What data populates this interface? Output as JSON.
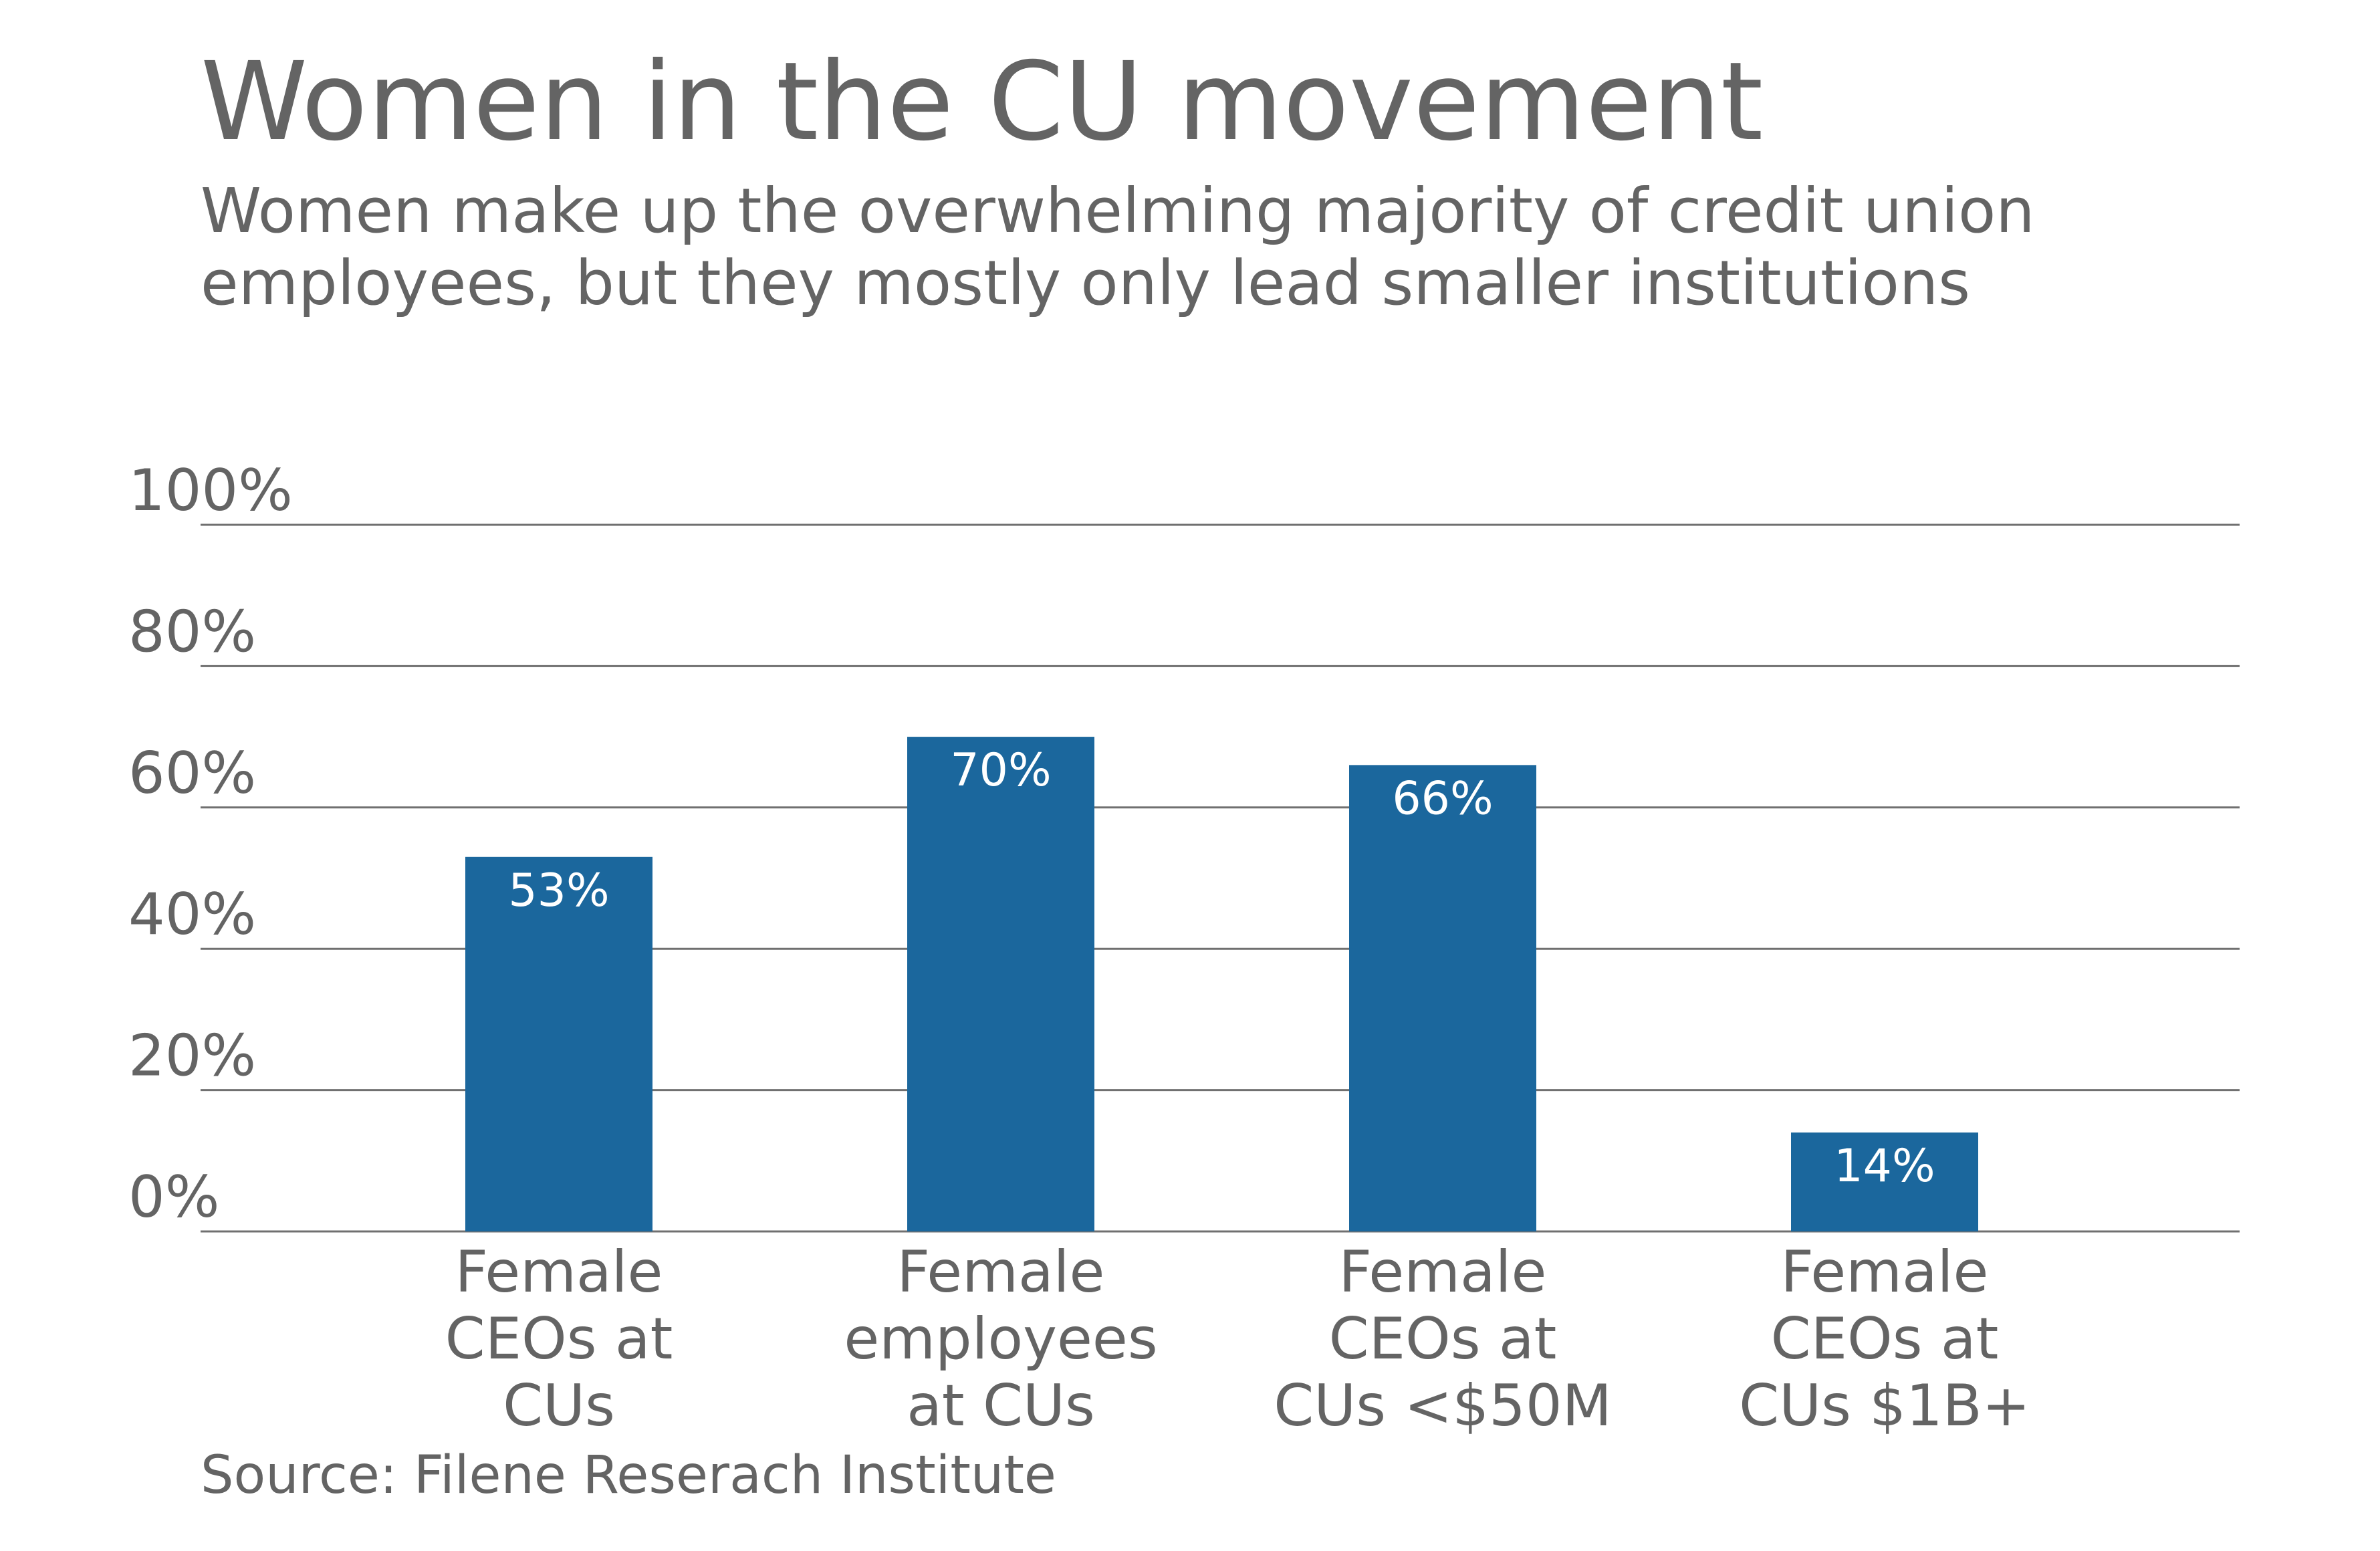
{
  "chart_data": {
    "type": "bar",
    "title": "Women in the CU movement",
    "subtitle": [
      "Women make up the overwhelming majority of credit union",
      "employees, but they mostly only lead smaller institutions"
    ],
    "categories": [
      [
        "Female",
        "CEOs at",
        "CUs"
      ],
      [
        "Female",
        "employees",
        "at CUs"
      ],
      [
        "Female",
        "CEOs at",
        "CUs <$50M"
      ],
      [
        "Female",
        "CEOs at",
        "CUs $1B+"
      ]
    ],
    "values": [
      53,
      70,
      66,
      14
    ],
    "data_labels": [
      "53%",
      "70%",
      "66%",
      "14%"
    ],
    "y_ticks": [
      0,
      20,
      40,
      60,
      80,
      100
    ],
    "y_tick_labels": [
      "0%",
      "20%",
      "40%",
      "60%",
      "80%",
      "100%"
    ],
    "ylim": [
      0,
      100
    ],
    "grid": true,
    "bar_color": "#1b679d",
    "source": "Source: Filene Reserach Institute"
  }
}
